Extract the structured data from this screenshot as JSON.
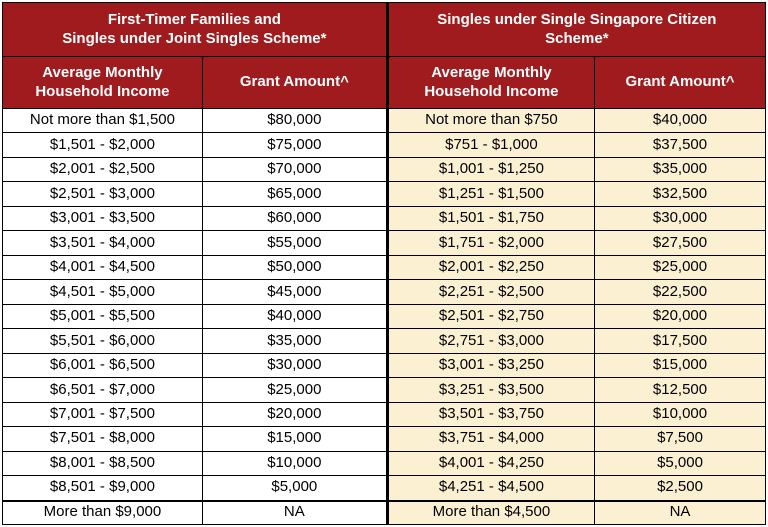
{
  "colors": {
    "header_bg": "#a01b1e",
    "header_text": "#ffffff",
    "left_rows_bg": "#ffffff",
    "right_rows_bg": "#fbf0d2",
    "border": "#000000",
    "body_text": "#000000"
  },
  "sections": [
    {
      "id": "first-timer-families",
      "title_line1": "First-Timer Families and",
      "title_line2": "Singles under Joint Singles Scheme*",
      "income_header": "Average Monthly Household Income",
      "grant_header": "Grant Amount^",
      "rows": [
        {
          "income": "Not more than $1,500",
          "grant": "$80,000"
        },
        {
          "income": "$1,501 - $2,000",
          "grant": "$75,000"
        },
        {
          "income": "$2,001 - $2,500",
          "grant": "$70,000"
        },
        {
          "income": "$2,501 - $3,000",
          "grant": "$65,000"
        },
        {
          "income": "$3,001 - $3,500",
          "grant": "$60,000"
        },
        {
          "income": "$3,501 - $4,000",
          "grant": "$55,000"
        },
        {
          "income": "$4,001 - $4,500",
          "grant": "$50,000"
        },
        {
          "income": "$4,501 - $5,000",
          "grant": "$45,000"
        },
        {
          "income": "$5,001 - $5,500",
          "grant": "$40,000"
        },
        {
          "income": "$5,501 - $6,000",
          "grant": "$35,000"
        },
        {
          "income": "$6,001 - $6,500",
          "grant": "$30,000"
        },
        {
          "income": "$6,501 - $7,000",
          "grant": "$25,000"
        },
        {
          "income": "$7,001 - $7,500",
          "grant": "$20,000"
        },
        {
          "income": "$7,501 - $8,000",
          "grant": "$15,000"
        },
        {
          "income": "$8,001 - $8,500",
          "grant": "$10,000"
        },
        {
          "income": "$8,501 - $9,000",
          "grant": "$5,000"
        },
        {
          "income": "More than $9,000",
          "grant": "NA"
        }
      ]
    },
    {
      "id": "singles-single-citizen",
      "title_line1": "Singles under Single Singapore Citizen",
      "title_line2": "Scheme*",
      "income_header": "Average Monthly Household Income",
      "grant_header": "Grant Amount^",
      "rows": [
        {
          "income": "Not more than $750",
          "grant": "$40,000"
        },
        {
          "income": "$751 - $1,000",
          "grant": "$37,500"
        },
        {
          "income": "$1,001 - $1,250",
          "grant": "$35,000"
        },
        {
          "income": "$1,251 - $1,500",
          "grant": "$32,500"
        },
        {
          "income": "$1,501 - $1,750",
          "grant": "$30,000"
        },
        {
          "income": "$1,751 - $2,000",
          "grant": "$27,500"
        },
        {
          "income": "$2,001 - $2,250",
          "grant": "$25,000"
        },
        {
          "income": "$2,251 - $2,500",
          "grant": "$22,500"
        },
        {
          "income": "$2,501 - $2,750",
          "grant": "$20,000"
        },
        {
          "income": "$2,751 - $3,000",
          "grant": "$17,500"
        },
        {
          "income": "$3,001 - $3,250",
          "grant": "$15,000"
        },
        {
          "income": "$3,251 - $3,500",
          "grant": "$12,500"
        },
        {
          "income": "$3,501 - $3,750",
          "grant": "$10,000"
        },
        {
          "income": "$3,751 - $4,000",
          "grant": "$7,500"
        },
        {
          "income": "$4,001 - $4,250",
          "grant": "$5,000"
        },
        {
          "income": "$4,251 - $4,500",
          "grant": "$2,500"
        },
        {
          "income": "More than $4,500",
          "grant": "NA"
        }
      ]
    }
  ]
}
